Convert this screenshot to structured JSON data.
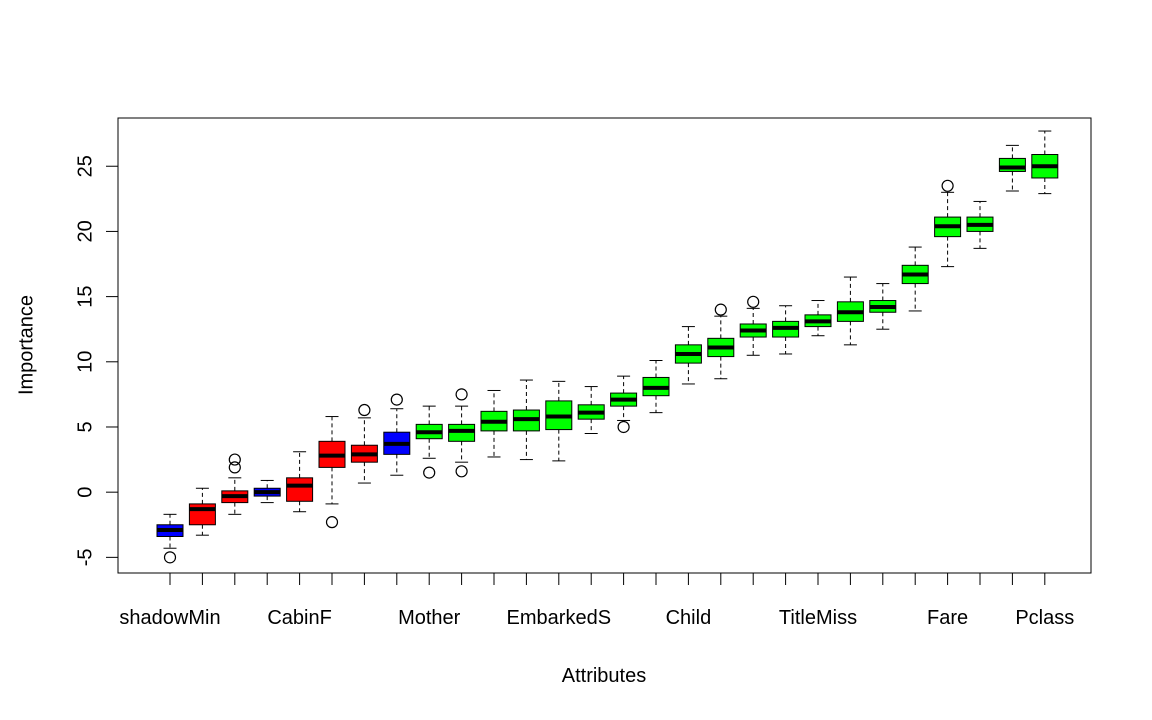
{
  "chart_data": {
    "type": "boxplot",
    "title": "",
    "xlabel": "Attributes",
    "ylabel": "Importance",
    "ylim": [
      -6.2,
      28.7
    ],
    "y_ticks": [
      -5,
      0,
      5,
      10,
      15,
      20,
      25
    ],
    "grid": false,
    "legend": "none",
    "colors": {
      "rejected": "#ff0000",
      "shadow": "#0000ff",
      "confirmed": "#00ff00",
      "outline": "#000000"
    },
    "tick_labels": [
      {
        "index": 1,
        "label": "shadowMin"
      },
      {
        "index": 5,
        "label": "CabinF"
      },
      {
        "index": 9,
        "label": "Mother"
      },
      {
        "index": 13,
        "label": "EmbarkedS"
      },
      {
        "index": 17,
        "label": "Child"
      },
      {
        "index": 21,
        "label": "TitleMiss"
      },
      {
        "index": 25,
        "label": "Fare"
      },
      {
        "index": 28,
        "label": "Pclass"
      }
    ],
    "boxes": [
      {
        "index": 1,
        "group": "shadow",
        "min": -4.3,
        "q1": -3.4,
        "median": -2.9,
        "q3": -2.5,
        "max": -1.7,
        "outliers": [
          -5.0
        ]
      },
      {
        "index": 2,
        "group": "rejected",
        "min": -3.3,
        "q1": -2.5,
        "median": -1.3,
        "q3": -0.9,
        "max": 0.3,
        "outliers": []
      },
      {
        "index": 3,
        "group": "rejected",
        "min": -1.7,
        "q1": -0.8,
        "median": -0.3,
        "q3": 0.1,
        "max": 1.1,
        "outliers": [
          1.9,
          2.5
        ]
      },
      {
        "index": 4,
        "group": "shadow",
        "min": -0.8,
        "q1": -0.3,
        "median": 0.0,
        "q3": 0.3,
        "max": 0.9,
        "outliers": []
      },
      {
        "index": 5,
        "group": "rejected",
        "min": -1.5,
        "q1": -0.7,
        "median": 0.5,
        "q3": 1.1,
        "max": 3.1,
        "outliers": []
      },
      {
        "index": 6,
        "group": "rejected",
        "min": -0.9,
        "q1": 1.9,
        "median": 2.8,
        "q3": 3.9,
        "max": 5.8,
        "outliers": [
          -2.3
        ]
      },
      {
        "index": 7,
        "group": "rejected",
        "min": 0.7,
        "q1": 2.3,
        "median": 2.9,
        "q3": 3.6,
        "max": 5.7,
        "outliers": [
          6.3
        ]
      },
      {
        "index": 8,
        "group": "shadow",
        "min": 1.3,
        "q1": 2.9,
        "median": 3.7,
        "q3": 4.6,
        "max": 6.4,
        "outliers": [
          7.1
        ]
      },
      {
        "index": 9,
        "group": "confirmed",
        "min": 2.6,
        "q1": 4.1,
        "median": 4.6,
        "q3": 5.2,
        "max": 6.6,
        "outliers": [
          1.5
        ]
      },
      {
        "index": 10,
        "group": "confirmed",
        "min": 2.3,
        "q1": 3.9,
        "median": 4.7,
        "q3": 5.2,
        "max": 6.6,
        "outliers": [
          1.6,
          7.5
        ]
      },
      {
        "index": 11,
        "group": "confirmed",
        "min": 2.7,
        "q1": 4.7,
        "median": 5.4,
        "q3": 6.2,
        "max": 7.8,
        "outliers": []
      },
      {
        "index": 12,
        "group": "confirmed",
        "min": 2.5,
        "q1": 4.7,
        "median": 5.6,
        "q3": 6.3,
        "max": 8.6,
        "outliers": []
      },
      {
        "index": 13,
        "group": "confirmed",
        "min": 2.4,
        "q1": 4.8,
        "median": 5.8,
        "q3": 7.0,
        "max": 8.5,
        "outliers": []
      },
      {
        "index": 14,
        "group": "confirmed",
        "min": 4.5,
        "q1": 5.6,
        "median": 6.1,
        "q3": 6.7,
        "max": 8.1,
        "outliers": []
      },
      {
        "index": 15,
        "group": "confirmed",
        "min": 5.5,
        "q1": 6.6,
        "median": 7.1,
        "q3": 7.6,
        "max": 8.9,
        "outliers": [
          5.0
        ]
      },
      {
        "index": 16,
        "group": "confirmed",
        "min": 6.1,
        "q1": 7.4,
        "median": 8.0,
        "q3": 8.8,
        "max": 10.1,
        "outliers": []
      },
      {
        "index": 17,
        "group": "confirmed",
        "min": 8.3,
        "q1": 9.9,
        "median": 10.6,
        "q3": 11.3,
        "max": 12.7,
        "outliers": []
      },
      {
        "index": 18,
        "group": "confirmed",
        "min": 8.7,
        "q1": 10.4,
        "median": 11.1,
        "q3": 11.8,
        "max": 13.5,
        "outliers": [
          14.0
        ]
      },
      {
        "index": 19,
        "group": "confirmed",
        "min": 10.5,
        "q1": 11.9,
        "median": 12.4,
        "q3": 12.9,
        "max": 14.1,
        "outliers": [
          14.6
        ]
      },
      {
        "index": 20,
        "group": "confirmed",
        "min": 10.6,
        "q1": 11.9,
        "median": 12.6,
        "q3": 13.1,
        "max": 14.3,
        "outliers": []
      },
      {
        "index": 21,
        "group": "confirmed",
        "min": 12.0,
        "q1": 12.7,
        "median": 13.1,
        "q3": 13.6,
        "max": 14.7,
        "outliers": []
      },
      {
        "index": 22,
        "group": "confirmed",
        "min": 11.3,
        "q1": 13.1,
        "median": 13.8,
        "q3": 14.6,
        "max": 16.5,
        "outliers": []
      },
      {
        "index": 23,
        "group": "confirmed",
        "min": 12.5,
        "q1": 13.8,
        "median": 14.2,
        "q3": 14.7,
        "max": 16.0,
        "outliers": []
      },
      {
        "index": 24,
        "group": "confirmed",
        "min": 13.9,
        "q1": 16.0,
        "median": 16.7,
        "q3": 17.4,
        "max": 18.8,
        "outliers": []
      },
      {
        "index": 25,
        "group": "confirmed",
        "min": 17.3,
        "q1": 19.6,
        "median": 20.4,
        "q3": 21.1,
        "max": 23.0,
        "outliers": [
          23.5
        ]
      },
      {
        "index": 26,
        "group": "confirmed",
        "min": 18.7,
        "q1": 20.0,
        "median": 20.5,
        "q3": 21.1,
        "max": 22.3,
        "outliers": []
      },
      {
        "index": 27,
        "group": "confirmed",
        "min": 23.1,
        "q1": 24.6,
        "median": 24.9,
        "q3": 25.6,
        "max": 26.6,
        "outliers": []
      },
      {
        "index": 28,
        "group": "confirmed",
        "min": 22.9,
        "q1": 24.1,
        "median": 25.0,
        "q3": 25.9,
        "max": 27.7,
        "outliers": []
      }
    ]
  }
}
